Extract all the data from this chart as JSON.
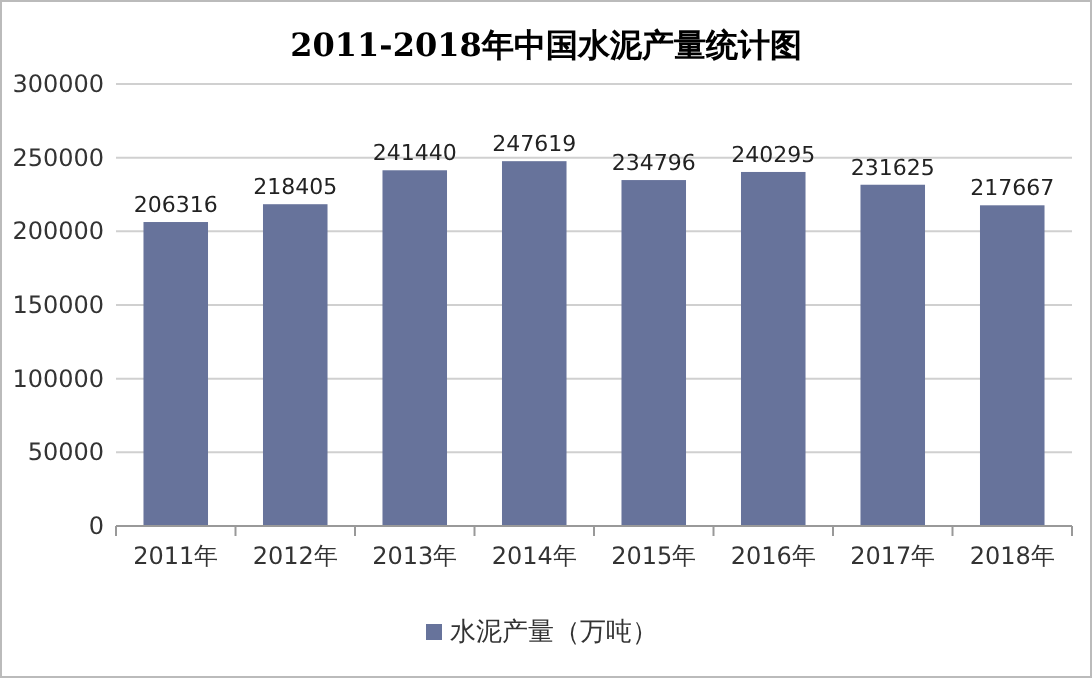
{
  "chart_data": {
    "type": "bar",
    "title": "2011-2018年中国水泥产量统计图",
    "categories": [
      "2011年",
      "2012年",
      "2013年",
      "2014年",
      "2015年",
      "2016年",
      "2017年",
      "2018年"
    ],
    "series": [
      {
        "name": "水泥产量（万吨）",
        "color": "#67739b",
        "values": [
          206316,
          218405,
          241440,
          247619,
          234796,
          240295,
          231625,
          217667
        ]
      }
    ],
    "ylim": [
      0,
      300000
    ],
    "yticks": [
      0,
      50000,
      100000,
      150000,
      200000,
      250000,
      300000
    ],
    "grid": "y",
    "legend": "bottom",
    "data_labels": true
  }
}
